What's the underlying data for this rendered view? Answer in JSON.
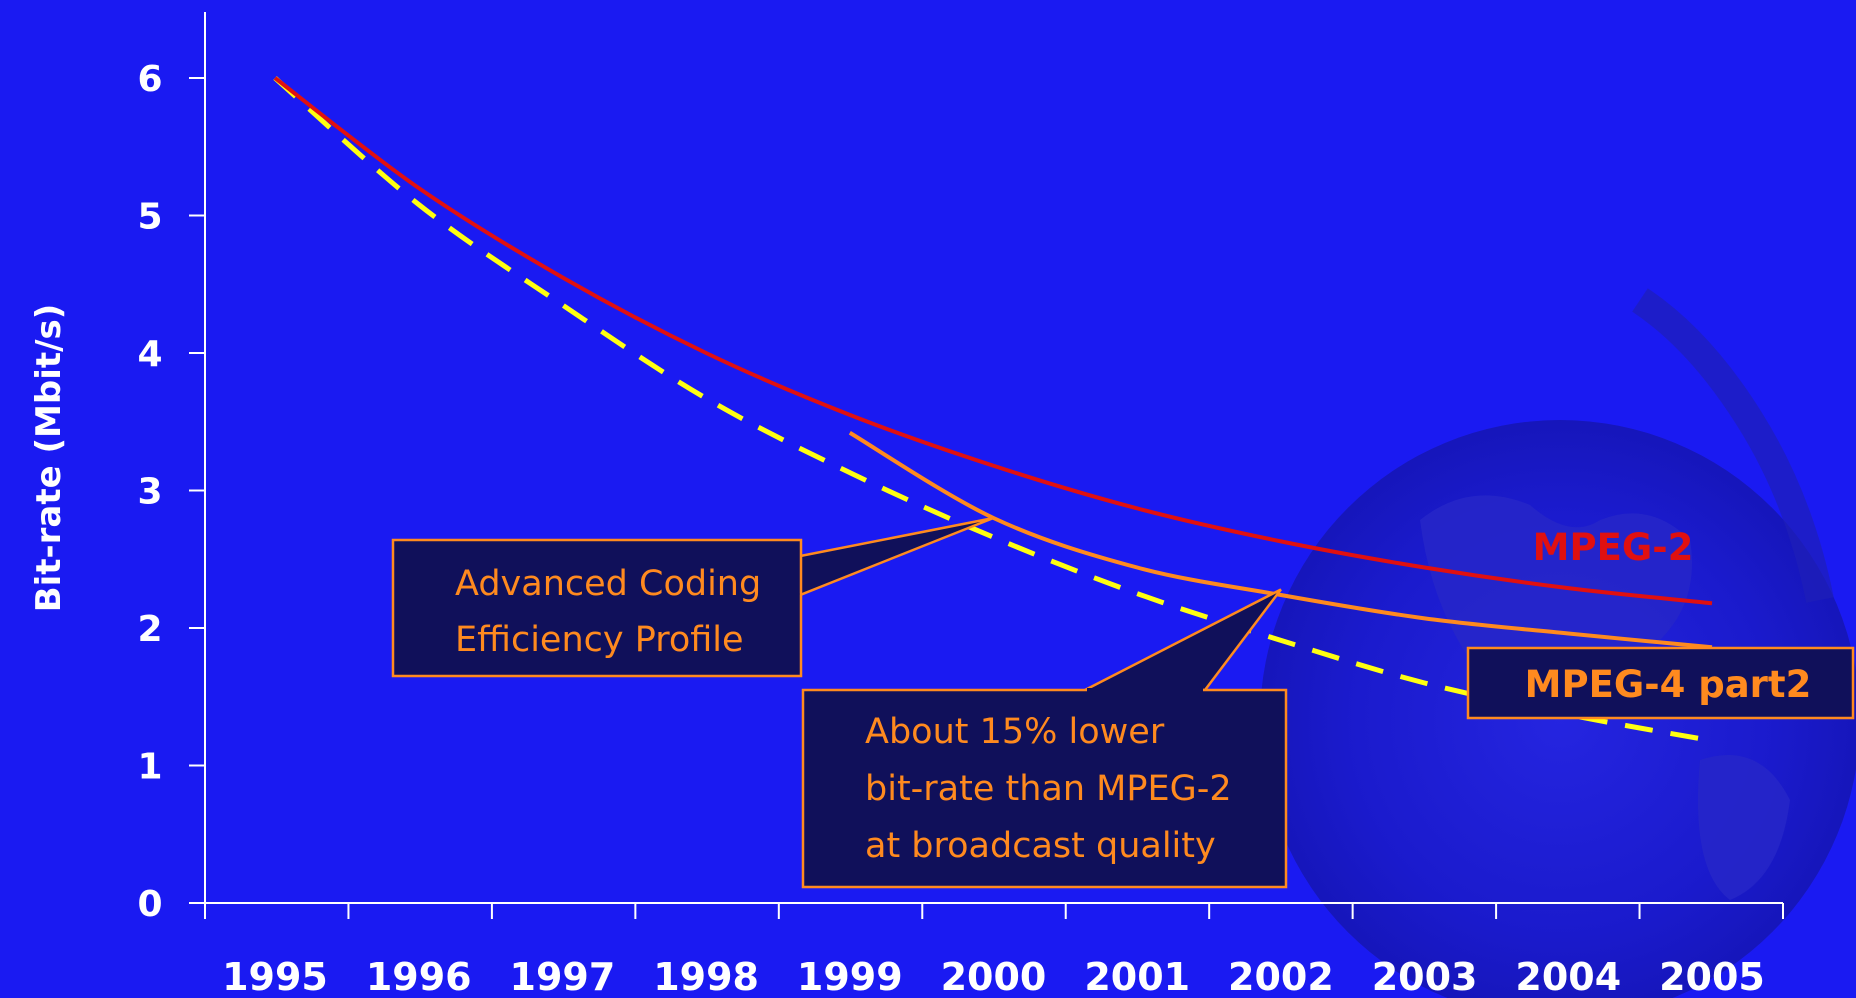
{
  "colors": {
    "background": "#1a1af2",
    "axis": "#ffffff",
    "mpeg2": "#e01010",
    "mpeg4": "#ff8a1f",
    "trend": "#ffff10",
    "callout_fill": "#10105a",
    "callout_border": "#ff8a1f",
    "callout_text": "#ff8a1f"
  },
  "chart_data": {
    "type": "line",
    "title": "",
    "xlabel": "",
    "ylabel": "Bit-rate (Mbit/s)",
    "x": [
      "1995",
      "1996",
      "1997",
      "1998",
      "1999",
      "2000",
      "2001",
      "2002",
      "2003",
      "2004",
      "2005"
    ],
    "yticks": [
      "0",
      "1",
      "2",
      "3",
      "4",
      "5",
      "6"
    ],
    "ylim": [
      0,
      6.5
    ],
    "grid": false,
    "series": [
      {
        "name": "MPEG-2",
        "style": "solid",
        "points": [
          [
            1995,
            6.0
          ],
          [
            1996,
            5.2
          ],
          [
            1997,
            4.55
          ],
          [
            1998,
            4.0
          ],
          [
            1999,
            3.55
          ],
          [
            2000,
            3.18
          ],
          [
            2001,
            2.87
          ],
          [
            2002,
            2.63
          ],
          [
            2003,
            2.44
          ],
          [
            2004,
            2.29
          ],
          [
            2005,
            2.18
          ]
        ]
      },
      {
        "name": "MPEG-4 part2",
        "style": "solid",
        "points": [
          [
            1999,
            3.42
          ],
          [
            2000,
            2.8
          ],
          [
            2001,
            2.44
          ],
          [
            2002,
            2.24
          ],
          [
            2003,
            2.07
          ],
          [
            2004,
            1.96
          ],
          [
            2005,
            1.86
          ]
        ]
      },
      {
        "name": "",
        "style": "dashed",
        "points": [
          [
            1995,
            6.0
          ],
          [
            1996,
            5.08
          ],
          [
            1997,
            4.35
          ],
          [
            1998,
            3.67
          ],
          [
            1999,
            3.13
          ],
          [
            2000,
            2.66
          ],
          [
            2001,
            2.25
          ],
          [
            2002,
            1.91
          ],
          [
            2003,
            1.6
          ],
          [
            2004,
            1.37
          ],
          [
            2005,
            1.18
          ]
        ]
      }
    ],
    "annotations": [
      {
        "id": "ace",
        "lines": [
          "Advanced Coding",
          "Efficiency Profile"
        ],
        "target": [
          2000,
          2.8
        ]
      },
      {
        "id": "lower",
        "lines": [
          "About 15% lower",
          "bit-rate than MPEG-2",
          "at broadcast quality"
        ],
        "target": [
          2002,
          2.28
        ]
      }
    ],
    "series_labels": [
      {
        "text": "MPEG-2",
        "color_key": "mpeg2"
      },
      {
        "text": "MPEG-4 part2",
        "color_key": "mpeg4"
      }
    ]
  }
}
